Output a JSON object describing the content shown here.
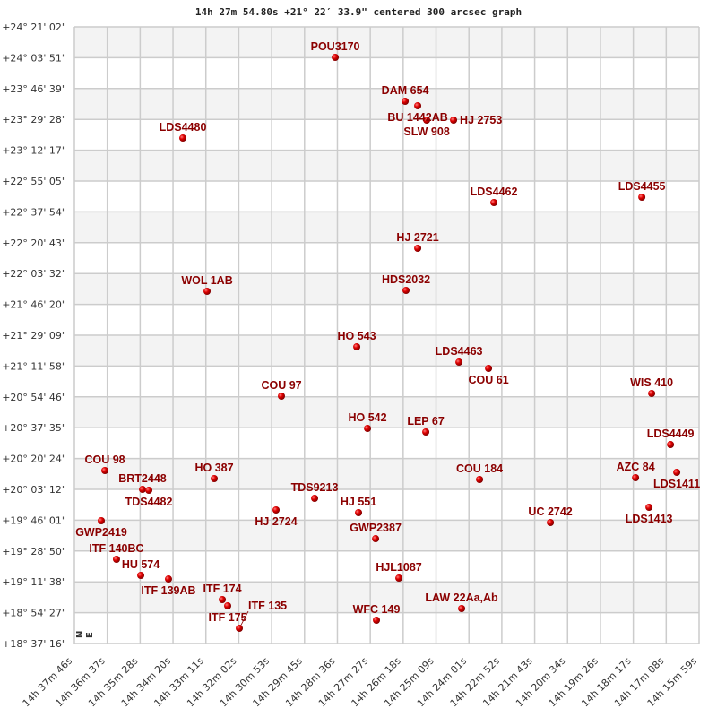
{
  "chart_data": {
    "type": "scatter",
    "title": "14h 27m 54.80s +21° 22′ 33.9\" centered 300 arcsec graph",
    "xlabel": "",
    "ylabel": "",
    "x_units": "RA seconds past 14h (decreasing to the right)",
    "y_units": "Dec arcseconds",
    "xlim": [
      2266,
      959
    ],
    "ylim": [
      67036,
      87662
    ],
    "grid": true,
    "compass": {
      "north": "N",
      "east": "E"
    },
    "x_ticks": [
      "14h 37m 46s",
      "14h 36m 37s",
      "14h 35m 28s",
      "14h 34m 20s",
      "14h 33m 11s",
      "14h 32m 02s",
      "14h 30m 53s",
      "14h 29m 45s",
      "14h 28m 36s",
      "14h 27m 27s",
      "14h 26m 18s",
      "14h 25m 09s",
      "14h 24m 01s",
      "14h 22m 52s",
      "14h 21m 43s",
      "14h 20m 34s",
      "14h 19m 26s",
      "14h 18m 17s",
      "14h 17m 08s",
      "14h 15m 59s"
    ],
    "y_ticks": [
      "+24° 21' 02\"",
      "+24° 03' 51\"",
      "+23° 46' 39\"",
      "+23° 29' 28\"",
      "+23° 12' 17\"",
      "+22° 55' 05\"",
      "+22° 37' 54\"",
      "+22° 20' 43\"",
      "+22° 03' 32\"",
      "+21° 46' 20\"",
      "+21° 29' 09\"",
      "+21° 11' 58\"",
      "+20° 54' 46\"",
      "+20° 37' 35\"",
      "+20° 20' 24\"",
      "+20° 03' 12\"",
      "+19° 46' 01\"",
      "+19° 28' 50\"",
      "+19° 11' 38\"",
      "+18° 54' 27\"",
      "+18° 37' 16\""
    ],
    "colors": {
      "point": "#dd0000",
      "label": "#8b0000",
      "band": "#f3f3f3",
      "grid": "#cccccc"
    },
    "points": [
      {
        "name": "POU3170",
        "ra": 1720.2,
        "dec": 86643
      },
      {
        "name": "DAM 654",
        "ra": 1573.9,
        "dec": 85174
      },
      {
        "name": "BU 1442AB",
        "ra": 1547.7,
        "dec": 85024
      },
      {
        "name": "SLW 908",
        "ra": 1528.9,
        "dec": 84544
      },
      {
        "name": "HJ 2753",
        "ra": 1472.7,
        "dec": 84544
      },
      {
        "name": "LDS4480",
        "ra": 2039.1,
        "dec": 83944
      },
      {
        "name": "LDS4462",
        "ra": 1388.3,
        "dec": 81786
      },
      {
        "name": "LDS4455",
        "ra": 1078.8,
        "dec": 81966
      },
      {
        "name": "HJ 2721",
        "ra": 1547.7,
        "dec": 80257
      },
      {
        "name": "WOL   1AB",
        "ra": 1988.4,
        "dec": 78818
      },
      {
        "name": "HDS2032",
        "ra": 1572.1,
        "dec": 78848
      },
      {
        "name": "HO  543",
        "ra": 1675.2,
        "dec": 76959
      },
      {
        "name": "LDS4463",
        "ra": 1461.4,
        "dec": 76449
      },
      {
        "name": "COU  61",
        "ra": 1399.5,
        "dec": 76240
      },
      {
        "name": "COU  97",
        "ra": 1832.8,
        "dec": 75310
      },
      {
        "name": "WIS 410",
        "ra": 1058.2,
        "dec": 75400
      },
      {
        "name": "HO  542",
        "ra": 1652.7,
        "dec": 74231
      },
      {
        "name": "LEP  67",
        "ra": 1530.8,
        "dec": 74111
      },
      {
        "name": "LDS4449",
        "ra": 1018.8,
        "dec": 73691
      },
      {
        "name": "COU  98",
        "ra": 2202.2,
        "dec": 72822
      },
      {
        "name": "HO  387",
        "ra": 1973.4,
        "dec": 72552
      },
      {
        "name": "BRT2448",
        "ra": 2123.5,
        "dec": 72192
      },
      {
        "name": "TDS4482",
        "ra": 2110.3,
        "dec": 72162
      },
      {
        "name": "COU 184",
        "ra": 1418.3,
        "dec": 72522
      },
      {
        "name": "AZC  84",
        "ra": 1091.9,
        "dec": 72582
      },
      {
        "name": "LDS1411",
        "ra": 1005.7,
        "dec": 72762
      },
      {
        "name": "TDS9213",
        "ra": 1763.4,
        "dec": 71893
      },
      {
        "name": "HJ 2724",
        "ra": 1844.0,
        "dec": 71503
      },
      {
        "name": "HJ  551",
        "ra": 1671.5,
        "dec": 71413
      },
      {
        "name": "LDS1413",
        "ra": 1063.8,
        "dec": 71593
      },
      {
        "name": "GWP2419",
        "ra": 2209.7,
        "dec": 71143
      },
      {
        "name": "UC 2742",
        "ra": 1270.1,
        "dec": 71083
      },
      {
        "name": "GWP2387",
        "ra": 1635.8,
        "dec": 70543
      },
      {
        "name": "ITF 140BC",
        "ra": 2177.9,
        "dec": 69854
      },
      {
        "name": "HU  574",
        "ra": 2127.2,
        "dec": 69314
      },
      {
        "name": "ITF 139AB",
        "ra": 2069.1,
        "dec": 69194
      },
      {
        "name": "HJL1087",
        "ra": 1587.1,
        "dec": 69224
      },
      {
        "name": "ITF 174",
        "ra": 1956.5,
        "dec": 68505
      },
      {
        "name": "ITF 175",
        "ra": 1945.3,
        "dec": 68295
      },
      {
        "name": "LAW  22Aa,Ab",
        "ra": 1455.8,
        "dec": 68205
      },
      {
        "name": "WFC 149",
        "ra": 1634.0,
        "dec": 67815
      },
      {
        "name": "ITF 135",
        "ra": 1920.9,
        "dec": 67545
      }
    ]
  }
}
